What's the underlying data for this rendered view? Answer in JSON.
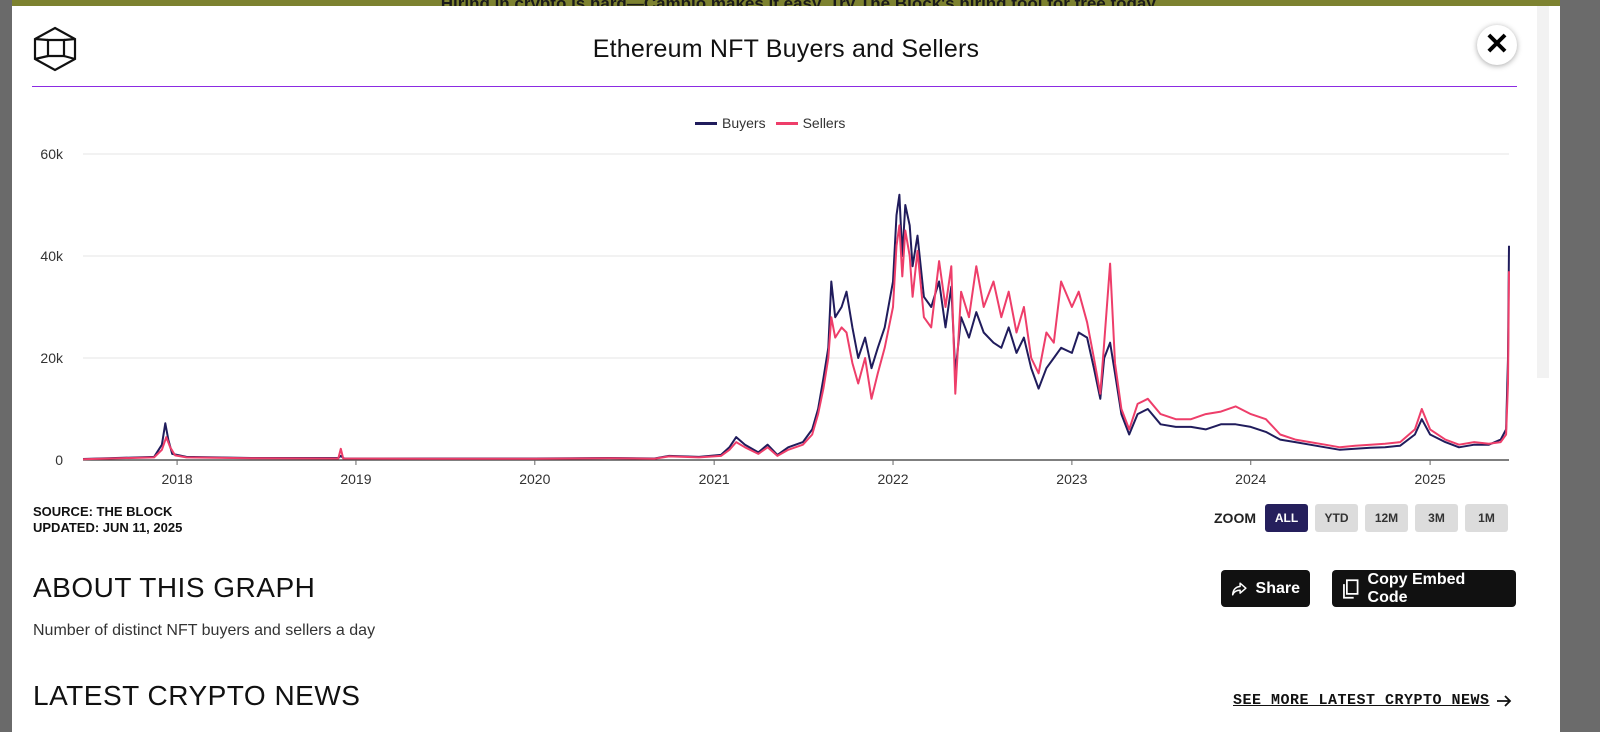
{
  "banner": {
    "text": "Hiring in crypto is hard—Cambio makes it easy. Try The Block's hiring tool for free today."
  },
  "header": {
    "title": "Ethereum NFT Buyers and Sellers",
    "logo_icon": "the-block-cube-logo",
    "close_icon": "close-icon",
    "accent_line_color": "#8b2be2"
  },
  "legend": {
    "buyers": "Buyers",
    "sellers": "Sellers"
  },
  "chart_data": {
    "type": "line",
    "xlim": [
      "2017-06-23",
      "2025-06-11"
    ],
    "ylim": [
      0,
      60000
    ],
    "yticks": [
      {
        "label": "0",
        "value": 0
      },
      {
        "label": "20k",
        "value": 20000
      },
      {
        "label": "40k",
        "value": 40000
      },
      {
        "label": "60k",
        "value": 60000
      }
    ],
    "xticks": [
      {
        "label": "2018",
        "date": "2018-01-01"
      },
      {
        "label": "2019",
        "date": "2019-01-01"
      },
      {
        "label": "2020",
        "date": "2020-01-01"
      },
      {
        "label": "2021",
        "date": "2021-01-01"
      },
      {
        "label": "2022",
        "date": "2022-01-01"
      },
      {
        "label": "2023",
        "date": "2023-01-01"
      },
      {
        "label": "2024",
        "date": "2024-01-01"
      },
      {
        "label": "2025",
        "date": "2025-01-01"
      }
    ],
    "grid": true,
    "legend_position": "top-center",
    "series": [
      {
        "name": "Buyers",
        "color": "#201c5c",
        "points": [
          [
            "2017-06-23",
            200
          ],
          [
            "2017-11-15",
            600
          ],
          [
            "2017-12-01",
            3000
          ],
          [
            "2017-12-08",
            7200
          ],
          [
            "2017-12-14",
            4000
          ],
          [
            "2017-12-22",
            1200
          ],
          [
            "2018-01-20",
            600
          ],
          [
            "2018-06-01",
            400
          ],
          [
            "2018-11-26",
            400
          ],
          [
            "2018-12-01",
            800
          ],
          [
            "2018-12-08",
            300
          ],
          [
            "2019-06-01",
            300
          ],
          [
            "2020-01-01",
            300
          ],
          [
            "2020-06-01",
            400
          ],
          [
            "2020-09-01",
            300
          ],
          [
            "2020-10-01",
            800
          ],
          [
            "2020-12-01",
            600
          ],
          [
            "2021-01-15",
            1000
          ],
          [
            "2021-02-01",
            2500
          ],
          [
            "2021-02-15",
            4500
          ],
          [
            "2021-03-05",
            3000
          ],
          [
            "2021-04-01",
            1500
          ],
          [
            "2021-04-20",
            3000
          ],
          [
            "2021-05-10",
            1000
          ],
          [
            "2021-06-01",
            2500
          ],
          [
            "2021-07-01",
            3500
          ],
          [
            "2021-07-20",
            6000
          ],
          [
            "2021-08-01",
            10000
          ],
          [
            "2021-08-12",
            16000
          ],
          [
            "2021-08-22",
            22000
          ],
          [
            "2021-08-28",
            35000
          ],
          [
            "2021-09-05",
            28000
          ],
          [
            "2021-09-18",
            30000
          ],
          [
            "2021-09-28",
            33000
          ],
          [
            "2021-10-10",
            26000
          ],
          [
            "2021-10-22",
            20000
          ],
          [
            "2021-11-05",
            24000
          ],
          [
            "2021-11-18",
            18000
          ],
          [
            "2021-12-01",
            22000
          ],
          [
            "2021-12-15",
            26000
          ],
          [
            "2022-01-01",
            35000
          ],
          [
            "2022-01-08",
            48000
          ],
          [
            "2022-01-14",
            52000
          ],
          [
            "2022-01-20",
            40000
          ],
          [
            "2022-01-26",
            50000
          ],
          [
            "2022-02-04",
            46000
          ],
          [
            "2022-02-10",
            38000
          ],
          [
            "2022-02-20",
            44000
          ],
          [
            "2022-03-05",
            32000
          ],
          [
            "2022-03-20",
            30000
          ],
          [
            "2022-04-05",
            35000
          ],
          [
            "2022-04-18",
            26000
          ],
          [
            "2022-04-30",
            34000
          ],
          [
            "2022-05-08",
            17000
          ],
          [
            "2022-05-20",
            28000
          ],
          [
            "2022-06-05",
            24000
          ],
          [
            "2022-06-20",
            29000
          ],
          [
            "2022-07-05",
            25000
          ],
          [
            "2022-07-25",
            23000
          ],
          [
            "2022-08-10",
            22000
          ],
          [
            "2022-08-25",
            26000
          ],
          [
            "2022-09-10",
            21000
          ],
          [
            "2022-09-25",
            24000
          ],
          [
            "2022-10-10",
            18000
          ],
          [
            "2022-10-25",
            14000
          ],
          [
            "2022-11-10",
            18000
          ],
          [
            "2022-11-25",
            20000
          ],
          [
            "2022-12-10",
            22000
          ],
          [
            "2023-01-01",
            21000
          ],
          [
            "2023-01-15",
            25000
          ],
          [
            "2023-02-01",
            24000
          ],
          [
            "2023-02-15",
            18000
          ],
          [
            "2023-02-28",
            12000
          ],
          [
            "2023-03-08",
            20000
          ],
          [
            "2023-03-20",
            23000
          ],
          [
            "2023-03-30",
            17000
          ],
          [
            "2023-04-12",
            9000
          ],
          [
            "2023-04-28",
            5000
          ],
          [
            "2023-05-15",
            9000
          ],
          [
            "2023-06-05",
            10000
          ],
          [
            "2023-07-01",
            7000
          ],
          [
            "2023-08-01",
            6500
          ],
          [
            "2023-09-01",
            6500
          ],
          [
            "2023-10-01",
            6000
          ],
          [
            "2023-11-01",
            7000
          ],
          [
            "2023-12-01",
            7000
          ],
          [
            "2024-01-01",
            6500
          ],
          [
            "2024-02-01",
            5500
          ],
          [
            "2024-03-01",
            4000
          ],
          [
            "2024-04-01",
            3500
          ],
          [
            "2024-05-01",
            3000
          ],
          [
            "2024-06-01",
            2500
          ],
          [
            "2024-07-01",
            2000
          ],
          [
            "2024-08-01",
            2200
          ],
          [
            "2024-09-01",
            2400
          ],
          [
            "2024-10-01",
            2500
          ],
          [
            "2024-11-01",
            2800
          ],
          [
            "2024-12-01",
            5000
          ],
          [
            "2024-12-15",
            8000
          ],
          [
            "2025-01-01",
            5000
          ],
          [
            "2025-02-01",
            3500
          ],
          [
            "2025-03-01",
            2500
          ],
          [
            "2025-04-01",
            3000
          ],
          [
            "2025-05-01",
            3000
          ],
          [
            "2025-05-25",
            4000
          ],
          [
            "2025-06-05",
            6000
          ],
          [
            "2025-06-09",
            20000
          ],
          [
            "2025-06-11",
            42000
          ]
        ]
      },
      {
        "name": "Sellers",
        "color": "#ee3e6a",
        "points": [
          [
            "2017-06-23",
            150
          ],
          [
            "2017-11-15",
            500
          ],
          [
            "2017-12-01",
            2000
          ],
          [
            "2017-12-10",
            4500
          ],
          [
            "2017-12-18",
            2500
          ],
          [
            "2017-12-28",
            900
          ],
          [
            "2018-01-20",
            500
          ],
          [
            "2018-06-01",
            350
          ],
          [
            "2018-11-26",
            300
          ],
          [
            "2018-12-01",
            2200
          ],
          [
            "2018-12-06",
            300
          ],
          [
            "2019-06-01",
            250
          ],
          [
            "2020-01-01",
            250
          ],
          [
            "2020-06-01",
            350
          ],
          [
            "2020-09-01",
            250
          ],
          [
            "2020-10-01",
            700
          ],
          [
            "2020-12-01",
            500
          ],
          [
            "2021-01-15",
            800
          ],
          [
            "2021-02-01",
            2000
          ],
          [
            "2021-02-15",
            3500
          ],
          [
            "2021-03-05",
            2500
          ],
          [
            "2021-04-01",
            1200
          ],
          [
            "2021-04-20",
            2500
          ],
          [
            "2021-05-10",
            800
          ],
          [
            "2021-06-01",
            2000
          ],
          [
            "2021-07-01",
            3000
          ],
          [
            "2021-07-20",
            5000
          ],
          [
            "2021-08-01",
            9000
          ],
          [
            "2021-08-12",
            14000
          ],
          [
            "2021-08-22",
            20000
          ],
          [
            "2021-08-28",
            28000
          ],
          [
            "2021-09-05",
            24000
          ],
          [
            "2021-09-18",
            26000
          ],
          [
            "2021-09-28",
            25000
          ],
          [
            "2021-10-10",
            19000
          ],
          [
            "2021-10-22",
            15000
          ],
          [
            "2021-11-05",
            20000
          ],
          [
            "2021-11-18",
            12000
          ],
          [
            "2021-12-01",
            17000
          ],
          [
            "2021-12-15",
            22000
          ],
          [
            "2022-01-01",
            30000
          ],
          [
            "2022-01-08",
            42000
          ],
          [
            "2022-01-14",
            46000
          ],
          [
            "2022-01-20",
            36000
          ],
          [
            "2022-01-26",
            45000
          ],
          [
            "2022-02-04",
            40000
          ],
          [
            "2022-02-10",
            32000
          ],
          [
            "2022-02-20",
            41000
          ],
          [
            "2022-03-05",
            28000
          ],
          [
            "2022-03-20",
            26000
          ],
          [
            "2022-04-05",
            39000
          ],
          [
            "2022-04-18",
            30000
          ],
          [
            "2022-04-30",
            38000
          ],
          [
            "2022-05-08",
            13000
          ],
          [
            "2022-05-20",
            33000
          ],
          [
            "2022-06-05",
            28000
          ],
          [
            "2022-06-20",
            38000
          ],
          [
            "2022-07-05",
            30000
          ],
          [
            "2022-07-25",
            35000
          ],
          [
            "2022-08-10",
            28000
          ],
          [
            "2022-08-25",
            33000
          ],
          [
            "2022-09-10",
            25000
          ],
          [
            "2022-09-25",
            30000
          ],
          [
            "2022-10-10",
            20000
          ],
          [
            "2022-10-25",
            17000
          ],
          [
            "2022-11-10",
            25000
          ],
          [
            "2022-11-25",
            23000
          ],
          [
            "2022-12-10",
            35000
          ],
          [
            "2023-01-01",
            30000
          ],
          [
            "2023-01-15",
            33000
          ],
          [
            "2023-02-01",
            27000
          ],
          [
            "2023-02-15",
            20000
          ],
          [
            "2023-02-28",
            13000
          ],
          [
            "2023-03-08",
            23000
          ],
          [
            "2023-03-20",
            38500
          ],
          [
            "2023-03-30",
            19000
          ],
          [
            "2023-04-12",
            10000
          ],
          [
            "2023-04-28",
            6000
          ],
          [
            "2023-05-15",
            11000
          ],
          [
            "2023-06-05",
            12000
          ],
          [
            "2023-07-01",
            9000
          ],
          [
            "2023-08-01",
            8000
          ],
          [
            "2023-09-01",
            8000
          ],
          [
            "2023-10-01",
            9000
          ],
          [
            "2023-11-01",
            9500
          ],
          [
            "2023-12-01",
            10500
          ],
          [
            "2024-01-01",
            9000
          ],
          [
            "2024-02-01",
            8000
          ],
          [
            "2024-03-01",
            5000
          ],
          [
            "2024-04-01",
            4000
          ],
          [
            "2024-05-01",
            3500
          ],
          [
            "2024-06-01",
            3000
          ],
          [
            "2024-07-01",
            2500
          ],
          [
            "2024-08-01",
            2800
          ],
          [
            "2024-09-01",
            3000
          ],
          [
            "2024-10-01",
            3200
          ],
          [
            "2024-11-01",
            3500
          ],
          [
            "2024-12-01",
            6000
          ],
          [
            "2024-12-15",
            10000
          ],
          [
            "2025-01-01",
            6000
          ],
          [
            "2025-02-01",
            4000
          ],
          [
            "2025-03-01",
            3000
          ],
          [
            "2025-04-01",
            3500
          ],
          [
            "2025-05-01",
            3200
          ],
          [
            "2025-05-25",
            3500
          ],
          [
            "2025-06-05",
            5000
          ],
          [
            "2025-06-09",
            15000
          ],
          [
            "2025-06-11",
            37000
          ]
        ]
      }
    ]
  },
  "footer": {
    "source": "SOURCE: THE BLOCK",
    "updated": "UPDATED: JUN 11, 2025",
    "zoom_label": "ZOOM",
    "zoom_options": [
      "ALL",
      "YTD",
      "12M",
      "3M",
      "1M"
    ],
    "zoom_selected": "ALL"
  },
  "about": {
    "title": "ABOUT THIS GRAPH",
    "description": "Number of distinct NFT buyers and sellers a day",
    "share_label": "Share",
    "share_icon": "share-arrow-icon",
    "embed_label": "Copy Embed Code",
    "embed_icon": "copy-icon"
  },
  "news": {
    "title": "LATEST CRYPTO NEWS",
    "see_more": "SEE MORE LATEST CRYPTO NEWS",
    "see_more_icon": "arrow-right-icon"
  }
}
